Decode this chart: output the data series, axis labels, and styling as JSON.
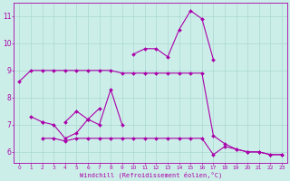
{
  "bg_color": "#cceee8",
  "grid_color": "#aad8d2",
  "line_color": "#aa00aa",
  "marker": "D",
  "markersize": 2,
  "linewidth": 0.8,
  "xlabel": "Windchill (Refroidissement éolien,°C)",
  "ylabel_ticks": [
    6,
    7,
    8,
    9,
    10,
    11
  ],
  "xlim": [
    -0.5,
    23.5
  ],
  "ylim": [
    5.6,
    11.5
  ],
  "series": [
    [
      8.6,
      9.0,
      9.0,
      9.0,
      9.0,
      9.0,
      9.0,
      9.0,
      9.0,
      8.9,
      8.9,
      8.9,
      8.9,
      8.9,
      8.9,
      8.9,
      8.9,
      6.6,
      6.3,
      6.1,
      6.0,
      6.0,
      5.9,
      5.9
    ],
    [
      null,
      7.3,
      7.1,
      null,
      7.1,
      7.5,
      7.2,
      7.0,
      8.3,
      7.0,
      null,
      null,
      null,
      null,
      null,
      null,
      null,
      null,
      null,
      null,
      null,
      null,
      null,
      null
    ],
    [
      null,
      null,
      7.1,
      7.0,
      6.5,
      6.7,
      7.2,
      7.6,
      null,
      null,
      null,
      null,
      null,
      null,
      null,
      null,
      null,
      null,
      null,
      null,
      null,
      null,
      null,
      null
    ],
    [
      null,
      null,
      null,
      null,
      null,
      null,
      null,
      null,
      null,
      null,
      9.6,
      9.8,
      9.8,
      9.5,
      10.5,
      11.2,
      10.9,
      9.4,
      null,
      null,
      null,
      null,
      null,
      null
    ],
    [
      null,
      null,
      6.5,
      6.5,
      6.4,
      6.5,
      6.5,
      6.5,
      6.5,
      6.5,
      6.5,
      6.5,
      6.5,
      6.5,
      6.5,
      6.5,
      6.5,
      5.9,
      6.2,
      6.1,
      6.0,
      6.0,
      5.9,
      5.9
    ]
  ]
}
